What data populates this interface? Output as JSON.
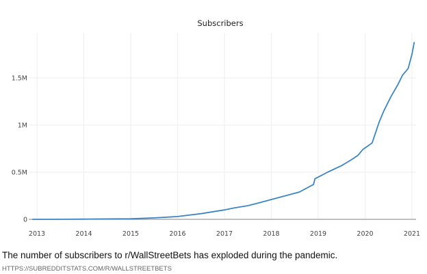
{
  "chart_data": {
    "type": "line",
    "title": "Subscribers",
    "xlabel": "",
    "ylabel": "",
    "xlim": [
      2013,
      2021.05
    ],
    "ylim": [
      0,
      1950000
    ],
    "x_ticks": [
      "2013",
      "2014",
      "2015",
      "2016",
      "2017",
      "2018",
      "2019",
      "2020",
      "2021"
    ],
    "y_ticks": [
      {
        "value": 0,
        "label": "0"
      },
      {
        "value": 500000,
        "label": "0.5M"
      },
      {
        "value": 1000000,
        "label": "1M"
      },
      {
        "value": 1500000,
        "label": "1.5M"
      }
    ],
    "grid": true,
    "color": "#3a85c6",
    "series": [
      {
        "name": "Subscribers",
        "x": [
          2012.9,
          2013.5,
          2014,
          2014.5,
          2015,
          2015.5,
          2016,
          2016.5,
          2017,
          2017.2,
          2017.5,
          2017.7,
          2018,
          2018.3,
          2018.6,
          2018.9,
          2018.93,
          2019.2,
          2019.5,
          2019.7,
          2019.85,
          2019.95,
          2020.15,
          2020.3,
          2020.4,
          2020.55,
          2020.7,
          2020.8,
          2020.92,
          2021.0,
          2021.05
        ],
        "y": [
          0,
          1000,
          2000,
          4000,
          6000,
          15000,
          30000,
          60000,
          100000,
          120000,
          145000,
          170000,
          210000,
          250000,
          290000,
          370000,
          430000,
          500000,
          570000,
          630000,
          680000,
          740000,
          810000,
          1030000,
          1150000,
          1300000,
          1430000,
          1530000,
          1600000,
          1750000,
          1880000
        ]
      }
    ]
  },
  "caption": "The number of subscribers to r/WallStreetBets has exploded during the pandemic.",
  "source": "HTTPS://SUBREDDITSTATS.COM/R/WALLSTREETBETS"
}
